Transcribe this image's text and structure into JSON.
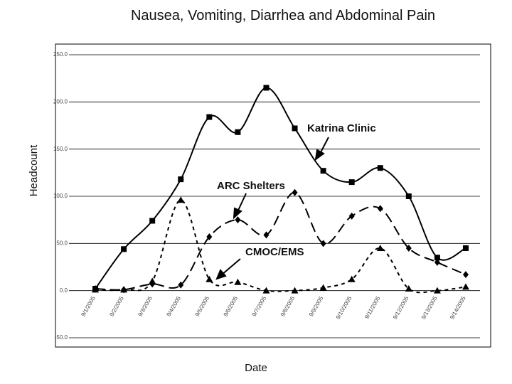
{
  "chart_data": {
    "type": "line",
    "title": "Nausea, Vomiting, Diarrhea and Abdominal Pain",
    "x_label": "Date",
    "y_label": "Headcount",
    "categories": [
      "9/1/2005",
      "9/2/2005",
      "9/3/2005",
      "9/4/2005",
      "9/5/2005",
      "9/6/2005",
      "9/7/2005",
      "9/8/2005",
      "9/9/2005",
      "9/10/2005",
      "9/11/2005",
      "9/12/2005",
      "9/13/2005",
      "9/14/2005"
    ],
    "series": [
      {
        "name": "Katrina Clinic",
        "color": "#000000",
        "values": [
          2,
          44,
          74,
          118,
          184,
          168,
          215,
          172,
          127,
          115,
          130,
          100,
          35,
          45
        ]
      },
      {
        "name": "ARC Shelters",
        "color": "#000000",
        "values": [
          2,
          1,
          7,
          6,
          57,
          75,
          59,
          104,
          50,
          79,
          87,
          45,
          30,
          17
        ]
      },
      {
        "name": "CMOC/EMS",
        "color": "#000000",
        "values": [
          1,
          1,
          10,
          96,
          12,
          9,
          0,
          0,
          3,
          12,
          45,
          2,
          0,
          4
        ]
      }
    ],
    "ylim": [
      -50,
      250
    ],
    "yticks": [
      {
        "value": -50,
        "label": "-50.0"
      },
      {
        "value": 0,
        "label": "0.0"
      },
      {
        "value": 50,
        "label": "50.0"
      },
      {
        "value": 100,
        "label": "100.0"
      },
      {
        "value": 150,
        "label": "150.0"
      },
      {
        "value": 200,
        "label": "200.0"
      },
      {
        "value": 250,
        "label": "250.0"
      }
    ],
    "grid": true
  }
}
